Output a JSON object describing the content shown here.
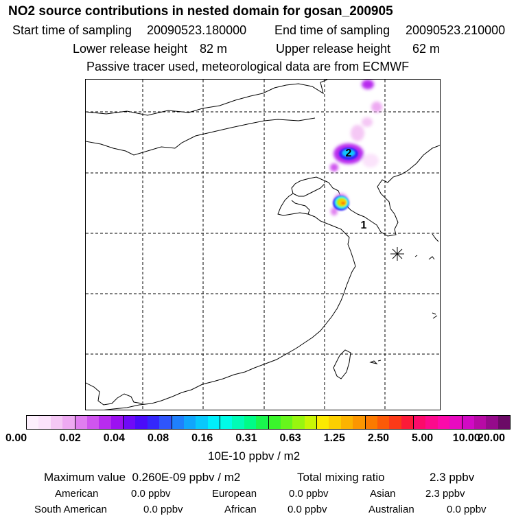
{
  "header": {
    "title": "NO2 source contributions in nested domain for gosan_200905",
    "start_label": "Start time of sampling",
    "start_value": "20090523.180000",
    "end_label": "End time of sampling",
    "end_value": "20090523.210000",
    "lower_label": "Lower release height",
    "lower_value": "82 m",
    "upper_label": "Upper release height",
    "upper_value": "62 m",
    "tracer_note": "Passive tracer used, meteorological data are from ECMWF"
  },
  "map": {
    "labels": {
      "release_site_1": "1",
      "release_site_2": "2"
    },
    "colors": {
      "coast": "#000000",
      "grid": "#000000"
    },
    "receptor_marker": "asterisk-star-icon"
  },
  "colorbar": {
    "colors": [
      "#fdf0fd",
      "#fbe3fb",
      "#f5c8f5",
      "#eeaaf2",
      "#e07ef0",
      "#cf55ee",
      "#b82cee",
      "#9c11f0",
      "#6f0af7",
      "#4a0cf9",
      "#3428fb",
      "#2f55fb",
      "#1f80fb",
      "#11a6fb",
      "#09c8fb",
      "#00eefb",
      "#00fbe7",
      "#00fbb6",
      "#00fb87",
      "#19f54e",
      "#3af52b",
      "#67f51c",
      "#98f50f",
      "#c8f505",
      "#fbea00",
      "#fbcf00",
      "#fbb300",
      "#fb9600",
      "#fb7a00",
      "#fb5a08",
      "#fb3a18",
      "#fb1a38",
      "#fb0a6a",
      "#fb0a8c",
      "#fb0aaa",
      "#e80ac0",
      "#d10ac4",
      "#b70aa5",
      "#950a8b",
      "#6b0a66"
    ],
    "tick_labels": [
      "0.00",
      "0.02",
      "0.04",
      "0.08",
      "0.16",
      "0.31",
      "0.63",
      "1.25",
      "2.50",
      "5.00",
      "10.00",
      "20.00"
    ],
    "unit": "10E-10 ppbv / m2"
  },
  "summary": {
    "max_label": "Maximum value",
    "max_value": "0.260E-09 ppbv / m2",
    "total_label": "Total mixing ratio",
    "total_value": "2.3 ppbv",
    "regions": [
      {
        "name": "American",
        "value": "0.0 ppbv"
      },
      {
        "name": "European",
        "value": "0.0 ppbv"
      },
      {
        "name": "Asian",
        "value": "2.3 ppbv"
      },
      {
        "name": "South American",
        "value": "0.0 ppbv"
      },
      {
        "name": "African",
        "value": "0.0 ppbv"
      },
      {
        "name": "Australian",
        "value": "0.0 ppbv"
      }
    ]
  }
}
